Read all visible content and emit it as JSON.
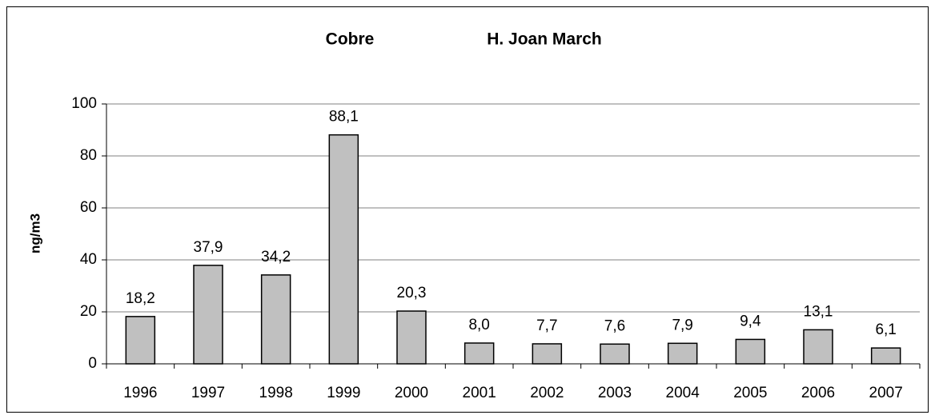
{
  "chart_data": {
    "type": "bar",
    "title": "Cobre",
    "subtitle": "H. Joan March",
    "y_label": "ng/m3",
    "categories": [
      "1996",
      "1997",
      "1998",
      "1999",
      "2000",
      "2001",
      "2002",
      "2003",
      "2004",
      "2005",
      "2006",
      "2007"
    ],
    "values": [
      18.2,
      37.9,
      34.2,
      88.1,
      20.3,
      8.0,
      7.7,
      7.6,
      7.9,
      9.4,
      13.1,
      6.1
    ],
    "value_labels": [
      "18,2",
      "37,9",
      "34,2",
      "88,1",
      "20,3",
      "8,0",
      "7,7",
      "7,6",
      "7,9",
      "9,4",
      "13,1",
      "6,1"
    ],
    "color": "#c0c0c0",
    "ylim": [
      0,
      100
    ],
    "yticks": [
      0,
      20,
      40,
      60,
      80,
      100
    ],
    "grid": true
  }
}
